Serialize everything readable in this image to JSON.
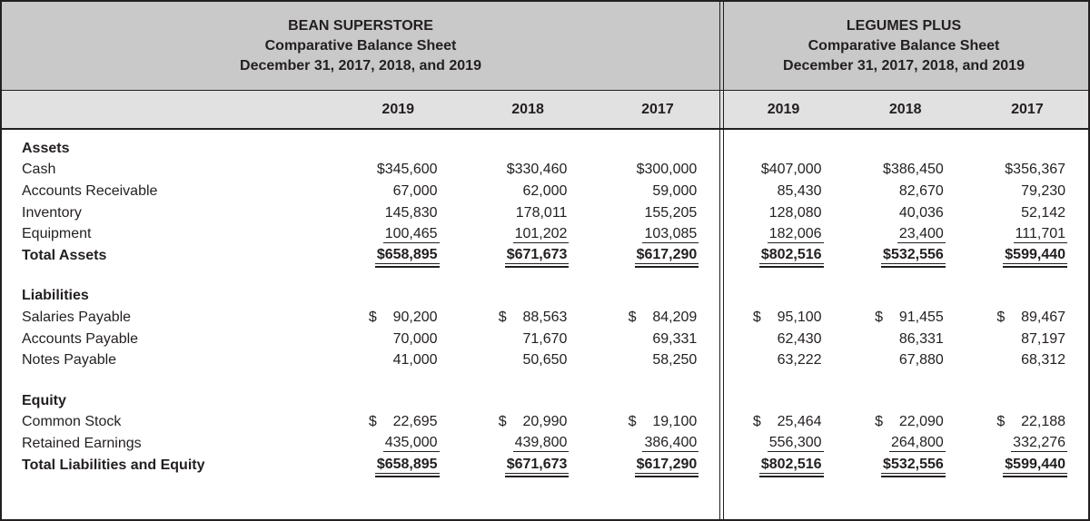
{
  "colors": {
    "title_band_bg": "#c9c9c9",
    "year_band_bg": "#e1e1e1",
    "text": "#231f20",
    "rule": "#231f20"
  },
  "statements": {
    "left": {
      "company": "BEAN SUPERSTORE",
      "subtitle": "Comparative Balance Sheet",
      "date_line": "December 31, 2017, 2018, and 2019",
      "years": [
        "2019",
        "2018",
        "2017"
      ]
    },
    "right": {
      "company": "LEGUMES PLUS",
      "subtitle": "Comparative Balance Sheet",
      "date_line": "December 31, 2017, 2018, and 2019",
      "years": [
        "2019",
        "2018",
        "2017"
      ]
    }
  },
  "rows": [
    {
      "type": "section",
      "label": "Assets"
    },
    {
      "type": "item",
      "label": "Cash",
      "bean": [
        "$345,600",
        "$330,460",
        "$300,000"
      ],
      "legumes": [
        "$407,000",
        "$386,450",
        "$356,367"
      ]
    },
    {
      "type": "item",
      "label": "Accounts Receivable",
      "bean": [
        "67,000",
        "62,000",
        "59,000"
      ],
      "legumes": [
        "85,430",
        "82,670",
        "79,230"
      ]
    },
    {
      "type": "item",
      "label": "Inventory",
      "bean": [
        "145,830",
        "178,011",
        "155,205"
      ],
      "legumes": [
        "128,080",
        "40,036",
        "52,142"
      ]
    },
    {
      "type": "item",
      "underline": "single",
      "label": "Equipment",
      "bean": [
        "100,465",
        "101,202",
        "103,085"
      ],
      "legumes": [
        "182,006",
        "23,400",
        "111,701"
      ]
    },
    {
      "type": "total",
      "underline": "double",
      "label": "Total Assets",
      "bean": [
        "$658,895",
        "$671,673",
        "$617,290"
      ],
      "legumes": [
        "$802,516",
        "$532,556",
        "$599,440"
      ]
    },
    {
      "type": "spacer"
    },
    {
      "type": "section",
      "label": "Liabilities"
    },
    {
      "type": "item",
      "label": "Salaries Payable",
      "bean": [
        "$  90,200",
        "$  88,563",
        "$  84,209"
      ],
      "legumes": [
        "$  95,100",
        "$  91,455",
        "$  89,467"
      ]
    },
    {
      "type": "item",
      "label": "Accounts Payable",
      "bean": [
        "70,000",
        "71,670",
        "69,331"
      ],
      "legumes": [
        "62,430",
        "86,331",
        "87,197"
      ]
    },
    {
      "type": "item",
      "label": "Notes Payable",
      "bean": [
        "41,000",
        "50,650",
        "58,250"
      ],
      "legumes": [
        "63,222",
        "67,880",
        "68,312"
      ]
    },
    {
      "type": "spacer"
    },
    {
      "type": "section",
      "label": "Equity"
    },
    {
      "type": "item",
      "label": "Common Stock",
      "bean": [
        "$  22,695",
        "$  20,990",
        "$  19,100"
      ],
      "legumes": [
        "$  25,464",
        "$  22,090",
        "$  22,188"
      ]
    },
    {
      "type": "item",
      "underline": "single",
      "label": "Retained Earnings",
      "bean": [
        "435,000",
        "439,800",
        "386,400"
      ],
      "legumes": [
        "556,300",
        "264,800",
        "332,276"
      ]
    },
    {
      "type": "total",
      "underline": "double",
      "label": "Total Liabilities and Equity",
      "bean": [
        "$658,895",
        "$671,673",
        "$617,290"
      ],
      "legumes": [
        "$802,516",
        "$532,556",
        "$599,440"
      ]
    }
  ]
}
